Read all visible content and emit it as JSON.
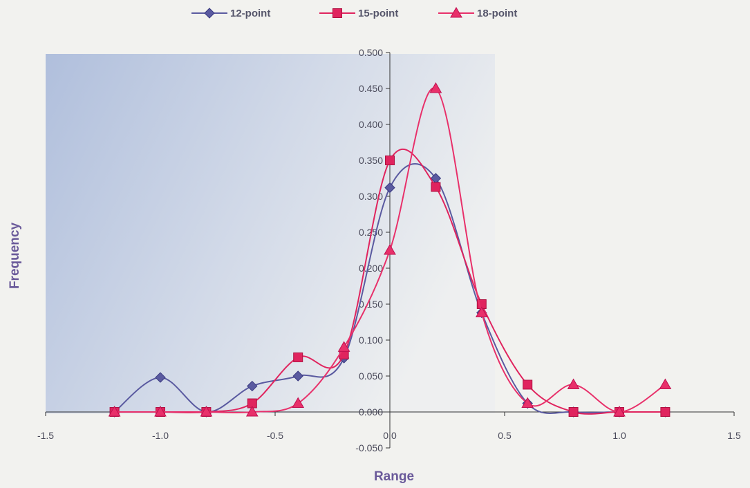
{
  "chart_data": {
    "type": "line",
    "title": "",
    "xlabel": "Range",
    "ylabel": "Frequency",
    "xlim": [
      -1.5,
      1.5
    ],
    "ylim": [
      -0.05,
      0.5
    ],
    "x_ticks": [
      "-1.5",
      "-1.0",
      "-0.5",
      "0.0",
      "0.5",
      "1.0",
      "1.5"
    ],
    "y_ticks": [
      "-0.050",
      "0.000",
      "0.050",
      "0.100",
      "0.150",
      "0.200",
      "0.250",
      "0.300",
      "0.350",
      "0.400",
      "0.450",
      "0.500"
    ],
    "smoothed_lines": true,
    "legend_position": "top-center",
    "series": [
      {
        "name": "12-point",
        "marker": "diamond",
        "color": "#5a5aa0",
        "x": [
          -1.2,
          -1.0,
          -0.8,
          -0.6,
          -0.4,
          -0.2,
          0.0,
          0.2,
          0.4,
          0.6,
          0.8,
          1.0,
          1.2
        ],
        "y": [
          0.0,
          0.048,
          0.0,
          0.036,
          0.05,
          0.075,
          0.312,
          0.325,
          0.138,
          0.012,
          0.0,
          0.0,
          0.0
        ]
      },
      {
        "name": "15-point",
        "marker": "square",
        "color": "#e0245e",
        "x": [
          -1.2,
          -1.0,
          -0.8,
          -0.6,
          -0.4,
          -0.2,
          0.0,
          0.2,
          0.4,
          0.6,
          0.8,
          1.0,
          1.2
        ],
        "y": [
          0.0,
          0.0,
          0.0,
          0.012,
          0.076,
          0.08,
          0.35,
          0.313,
          0.15,
          0.038,
          0.0,
          0.0,
          0.0
        ]
      },
      {
        "name": "18-point",
        "marker": "triangle",
        "color": "#e8306a",
        "x": [
          -1.2,
          -1.0,
          -0.8,
          -0.6,
          -0.4,
          -0.2,
          0.0,
          0.2,
          0.4,
          0.6,
          0.8,
          1.0,
          1.2
        ],
        "y": [
          0.0,
          0.0,
          0.0,
          0.0,
          0.012,
          0.09,
          0.225,
          0.45,
          0.138,
          0.012,
          0.038,
          0.0,
          0.038
        ]
      }
    ]
  }
}
